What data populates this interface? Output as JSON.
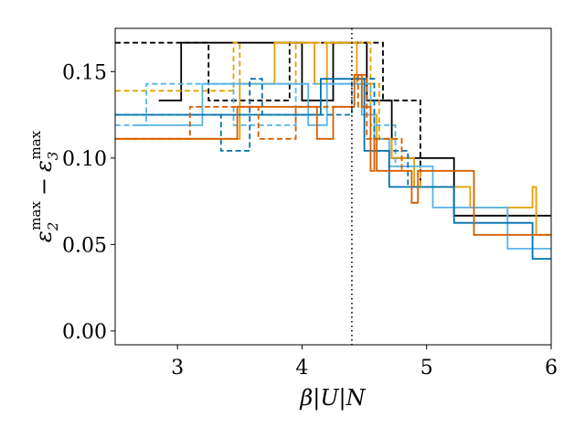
{
  "chart_data": {
    "type": "line",
    "xlabel": "β|U|N",
    "ylabel_parts": {
      "a": "ε",
      "a_sup": "max",
      "a_sub": "2",
      "minus": "−",
      "b": "ε",
      "b_sup": "max",
      "b_sub": "3"
    },
    "xlim": [
      2.5,
      6.0
    ],
    "ylim": [
      -0.008,
      0.175
    ],
    "x_ticks": [
      3,
      4,
      5,
      6
    ],
    "x_tick_labels": [
      "3",
      "4",
      "5",
      "6"
    ],
    "y_ticks": [
      0.0,
      0.05,
      0.1,
      0.15
    ],
    "y_tick_labels": [
      "0.00",
      "0.05",
      "0.10",
      "0.15"
    ],
    "vline_x": 4.4,
    "series": [
      {
        "color": "#000000",
        "style": "solid",
        "points": [
          [
            2.85,
            0.1333
          ],
          [
            3.03,
            0.1333
          ],
          [
            3.03,
            0.1667
          ],
          [
            4.0,
            0.1667
          ],
          [
            4.0,
            0.1333
          ],
          [
            4.25,
            0.1333
          ],
          [
            4.25,
            0.1667
          ],
          [
            4.52,
            0.1667
          ],
          [
            4.52,
            0.1333
          ],
          [
            4.72,
            0.1333
          ],
          [
            4.72,
            0.1
          ],
          [
            5.22,
            0.1
          ],
          [
            5.22,
            0.0667
          ],
          [
            6.0,
            0.0667
          ]
        ]
      },
      {
        "color": "#000000",
        "style": "dashed",
        "points": [
          [
            2.5,
            0.1667
          ],
          [
            3.25,
            0.1667
          ],
          [
            3.25,
            0.1333
          ],
          [
            3.9,
            0.1333
          ],
          [
            3.9,
            0.1667
          ],
          [
            4.65,
            0.1667
          ],
          [
            4.65,
            0.1333
          ],
          [
            4.95,
            0.1333
          ],
          [
            4.95,
            0.0833
          ]
        ]
      },
      {
        "color": "#E69F00",
        "style": "solid",
        "points": [
          [
            2.5,
            0.1111
          ],
          [
            3.5,
            0.1111
          ],
          [
            3.5,
            0.1429
          ],
          [
            3.78,
            0.1429
          ],
          [
            3.78,
            0.1667
          ],
          [
            4.1,
            0.1667
          ],
          [
            4.1,
            0.1429
          ],
          [
            4.2,
            0.1429
          ],
          [
            4.2,
            0.1667
          ],
          [
            4.44,
            0.1667
          ],
          [
            4.44,
            0.1429
          ],
          [
            4.55,
            0.1429
          ],
          [
            4.55,
            0.125
          ],
          [
            4.6,
            0.125
          ],
          [
            4.6,
            0.1111
          ],
          [
            4.72,
            0.1111
          ],
          [
            4.72,
            0.1
          ],
          [
            4.9,
            0.1
          ],
          [
            4.9,
            0.0833
          ],
          [
            5.35,
            0.0833
          ],
          [
            5.35,
            0.0714
          ],
          [
            5.85,
            0.0714
          ],
          [
            5.85,
            0.0833
          ],
          [
            5.88,
            0.0833
          ],
          [
            5.88,
            0.0556
          ],
          [
            6.0,
            0.0556
          ]
        ]
      },
      {
        "color": "#E69F00",
        "style": "dashed",
        "points": [
          [
            2.5,
            0.1389
          ],
          [
            3.45,
            0.1389
          ],
          [
            3.45,
            0.1667
          ],
          [
            3.5,
            0.1667
          ],
          [
            3.5,
            0.1429
          ],
          [
            3.95,
            0.1429
          ],
          [
            3.95,
            0.1667
          ],
          [
            4.55,
            0.1667
          ],
          [
            4.55,
            0.1429
          ],
          [
            4.62,
            0.1429
          ],
          [
            4.62,
            0.1111
          ],
          [
            4.8,
            0.1111
          ],
          [
            4.8,
            0.0952
          ],
          [
            4.95,
            0.0952
          ],
          [
            4.95,
            0.0833
          ],
          [
            5.0,
            0.0833
          ]
        ]
      },
      {
        "color": "#56B4E9",
        "style": "solid",
        "points": [
          [
            2.65,
            0.119
          ],
          [
            3.2,
            0.119
          ],
          [
            3.2,
            0.1429
          ],
          [
            4.05,
            0.1429
          ],
          [
            4.05,
            0.119
          ],
          [
            4.2,
            0.119
          ],
          [
            4.2,
            0.1429
          ],
          [
            4.48,
            0.1429
          ],
          [
            4.48,
            0.125
          ],
          [
            4.58,
            0.125
          ],
          [
            4.58,
            0.1111
          ],
          [
            4.7,
            0.1111
          ],
          [
            4.7,
            0.0952
          ],
          [
            5.05,
            0.0952
          ],
          [
            5.05,
            0.0714
          ],
          [
            5.65,
            0.0714
          ],
          [
            5.65,
            0.0476
          ],
          [
            6.0,
            0.0476
          ]
        ]
      },
      {
        "color": "#56B4E9",
        "style": "dashed",
        "points": [
          [
            2.5,
            0.119
          ],
          [
            2.75,
            0.119
          ],
          [
            2.75,
            0.1429
          ],
          [
            3.45,
            0.1429
          ],
          [
            3.45,
            0.119
          ],
          [
            3.95,
            0.119
          ],
          [
            3.95,
            0.1429
          ],
          [
            4.55,
            0.1429
          ],
          [
            4.55,
            0.119
          ],
          [
            4.75,
            0.119
          ],
          [
            4.75,
            0.0952
          ],
          [
            4.9,
            0.0952
          ]
        ]
      },
      {
        "color": "#0072B2",
        "style": "solid",
        "points": [
          [
            2.5,
            0.125
          ],
          [
            4.15,
            0.125
          ],
          [
            4.15,
            0.1458
          ],
          [
            4.5,
            0.1458
          ],
          [
            4.5,
            0.1042
          ],
          [
            4.7,
            0.1042
          ],
          [
            4.7,
            0.0833
          ],
          [
            5.22,
            0.0833
          ],
          [
            5.22,
            0.0625
          ],
          [
            5.85,
            0.0625
          ],
          [
            5.85,
            0.0417
          ],
          [
            6.0,
            0.0417
          ]
        ]
      },
      {
        "color": "#0072B2",
        "style": "dashed",
        "points": [
          [
            2.5,
            0.125
          ],
          [
            3.35,
            0.125
          ],
          [
            3.35,
            0.1042
          ],
          [
            3.58,
            0.1042
          ],
          [
            3.58,
            0.1458
          ],
          [
            3.68,
            0.1458
          ],
          [
            3.68,
            0.125
          ],
          [
            4.4,
            0.125
          ],
          [
            4.4,
            0.1458
          ],
          [
            4.58,
            0.1458
          ],
          [
            4.58,
            0.1042
          ],
          [
            4.85,
            0.1042
          ],
          [
            4.85,
            0.0833
          ]
        ]
      },
      {
        "color": "#D55E00",
        "style": "solid",
        "points": [
          [
            2.5,
            0.1111
          ],
          [
            3.48,
            0.1111
          ],
          [
            3.48,
            0.1296
          ],
          [
            4.12,
            0.1296
          ],
          [
            4.12,
            0.1111
          ],
          [
            4.25,
            0.1111
          ],
          [
            4.25,
            0.1296
          ],
          [
            4.42,
            0.1296
          ],
          [
            4.42,
            0.1481
          ],
          [
            4.48,
            0.1481
          ],
          [
            4.48,
            0.1296
          ],
          [
            4.55,
            0.1296
          ],
          [
            4.55,
            0.0926
          ],
          [
            4.58,
            0.0926
          ],
          [
            4.58,
            0.1111
          ],
          [
            4.6,
            0.1111
          ],
          [
            4.6,
            0.0926
          ],
          [
            4.88,
            0.0926
          ],
          [
            4.88,
            0.0741
          ],
          [
            4.93,
            0.0741
          ],
          [
            4.93,
            0.0926
          ],
          [
            5.38,
            0.0926
          ],
          [
            5.38,
            0.0556
          ],
          [
            6.0,
            0.0556
          ]
        ]
      },
      {
        "color": "#D55E00",
        "style": "dashed",
        "points": [
          [
            2.5,
            0.1111
          ],
          [
            3.1,
            0.1111
          ],
          [
            3.1,
            0.1296
          ],
          [
            3.65,
            0.1296
          ],
          [
            3.65,
            0.1111
          ],
          [
            3.95,
            0.1111
          ],
          [
            3.95,
            0.1296
          ],
          [
            4.45,
            0.1296
          ],
          [
            4.45,
            0.1481
          ],
          [
            4.52,
            0.1481
          ],
          [
            4.52,
            0.1111
          ],
          [
            4.8,
            0.1111
          ],
          [
            4.8,
            0.0926
          ]
        ]
      }
    ]
  }
}
